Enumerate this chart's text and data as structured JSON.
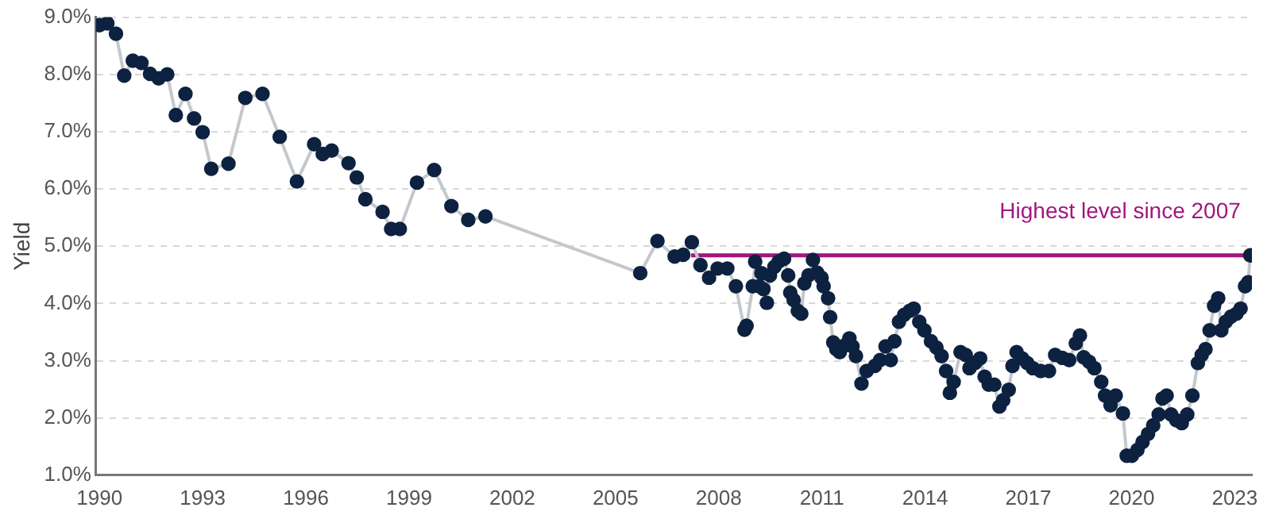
{
  "chart_data": {
    "type": "line",
    "ylabel": "Yield",
    "xlim": [
      1989.9,
      2023.5
    ],
    "xticks": [
      1990,
      1993,
      1996,
      1999,
      2002,
      2005,
      2008,
      2011,
      2014,
      2017,
      2020,
      2023
    ],
    "ylim": [
      1,
      9
    ],
    "yticks": [
      {
        "value": 1,
        "label": "1.0%"
      },
      {
        "value": 2,
        "label": "2.0%"
      },
      {
        "value": 3,
        "label": "3.0%"
      },
      {
        "value": 4,
        "label": "4.0%"
      },
      {
        "value": 5,
        "label": "5.0%"
      },
      {
        "value": 6,
        "label": "6.0%"
      },
      {
        "value": 7,
        "label": "7.0%"
      },
      {
        "value": 8,
        "label": "8.0%"
      },
      {
        "value": 9,
        "label": "9.0%"
      }
    ],
    "grid": "y",
    "legend": false,
    "marker": "circle",
    "line_style": "solid",
    "annotations": [
      {
        "text": "Highest level since 2007",
        "x": 2023.45,
        "y": 4.84
      }
    ],
    "series": [
      {
        "color": "#0d2240",
        "x": [
          1990.0,
          1990.23,
          1990.48,
          1990.72,
          1990.97,
          1991.22,
          1991.47,
          1991.72,
          1991.97,
          1992.22,
          1992.5,
          1992.75,
          1993.0,
          1993.25,
          1993.75,
          1994.24,
          1994.74,
          1995.24,
          1995.74,
          1996.24,
          1996.49,
          1996.75,
          1997.24,
          1997.48,
          1997.73,
          1998.23,
          1998.48,
          1998.73,
          1999.23,
          1999.73,
          2000.23,
          2000.72,
          2001.22,
          2005.72,
          2006.22,
          2006.72,
          2006.97,
          2007.22,
          2007.47,
          2007.72,
          2007.97,
          2008.25,
          2008.5,
          2008.75,
          2008.81,
          2008.99,
          2009.06,
          2009.18,
          2009.24,
          2009.3,
          2009.4,
          2009.49,
          2009.62,
          2009.74,
          2009.9,
          2010.02,
          2010.08,
          2010.18,
          2010.3,
          2010.4,
          2010.49,
          2010.61,
          2010.74,
          2010.86,
          2010.99,
          2011.05,
          2011.18,
          2011.24,
          2011.33,
          2011.42,
          2011.52,
          2011.67,
          2011.8,
          2011.89,
          2011.99,
          2012.15,
          2012.3,
          2012.54,
          2012.69,
          2012.85,
          2013.0,
          2013.11,
          2013.24,
          2013.39,
          2013.55,
          2013.67,
          2013.83,
          2013.98,
          2014.17,
          2014.33,
          2014.48,
          2014.61,
          2014.72,
          2014.83,
          2015.03,
          2015.18,
          2015.29,
          2015.45,
          2015.6,
          2015.73,
          2015.85,
          2016.01,
          2016.16,
          2016.27,
          2016.43,
          2016.54,
          2016.66,
          2016.82,
          2016.97,
          2017.13,
          2017.36,
          2017.6,
          2017.78,
          2017.99,
          2018.19,
          2018.38,
          2018.5,
          2018.61,
          2018.77,
          2018.92,
          2019.12,
          2019.23,
          2019.39,
          2019.54,
          2019.75,
          2019.86,
          2020.01,
          2020.17,
          2020.32,
          2020.48,
          2020.63,
          2020.79,
          2020.9,
          2021.02,
          2021.15,
          2021.3,
          2021.46,
          2021.62,
          2021.77,
          2021.93,
          2022.04,
          2022.15,
          2022.27,
          2022.4,
          2022.52,
          2022.61,
          2022.74,
          2022.89,
          2023.05,
          2023.17,
          2023.3,
          2023.39,
          2023.45
        ],
        "values": [
          8.86,
          8.89,
          8.71,
          7.98,
          8.24,
          8.2,
          8.01,
          7.93,
          8.0,
          7.29,
          7.66,
          7.23,
          6.99,
          6.35,
          6.44,
          7.59,
          7.66,
          6.91,
          6.13,
          6.78,
          6.61,
          6.67,
          6.45,
          6.2,
          5.82,
          5.6,
          5.3,
          5.3,
          6.11,
          6.33,
          5.7,
          5.46,
          5.52,
          4.53,
          5.09,
          4.82,
          4.85,
          5.07,
          4.67,
          4.45,
          4.61,
          4.61,
          4.3,
          3.54,
          3.61,
          4.3,
          4.73,
          4.3,
          4.53,
          4.25,
          4.01,
          4.49,
          4.64,
          4.73,
          4.78,
          4.49,
          4.19,
          4.06,
          3.87,
          3.82,
          4.35,
          4.49,
          4.76,
          4.54,
          4.45,
          4.3,
          4.09,
          3.76,
          3.32,
          3.2,
          3.15,
          3.27,
          3.39,
          3.25,
          3.08,
          2.6,
          2.82,
          2.91,
          3.01,
          3.25,
          3.01,
          3.34,
          3.68,
          3.8,
          3.87,
          3.91,
          3.68,
          3.53,
          3.34,
          3.23,
          3.08,
          2.82,
          2.44,
          2.63,
          3.15,
          3.1,
          2.87,
          2.96,
          3.04,
          2.72,
          2.58,
          2.58,
          2.2,
          2.31,
          2.49,
          2.91,
          3.15,
          3.04,
          2.96,
          2.87,
          2.82,
          2.82,
          3.1,
          3.05,
          3.01,
          3.3,
          3.44,
          3.06,
          2.98,
          2.87,
          2.63,
          2.39,
          2.22,
          2.39,
          2.08,
          1.34,
          1.34,
          1.44,
          1.58,
          1.72,
          1.87,
          2.06,
          2.34,
          2.39,
          2.06,
          1.96,
          1.91,
          2.06,
          2.39,
          2.96,
          3.1,
          3.2,
          3.53,
          3.96,
          4.09,
          3.53,
          3.68,
          3.77,
          3.82,
          3.91,
          4.3,
          4.37,
          4.84
        ]
      },
      {
        "color": "#a3157f",
        "marker": "none",
        "x": [
          2007.2,
          2023.45
        ],
        "values": [
          4.84,
          4.84
        ]
      }
    ]
  }
}
